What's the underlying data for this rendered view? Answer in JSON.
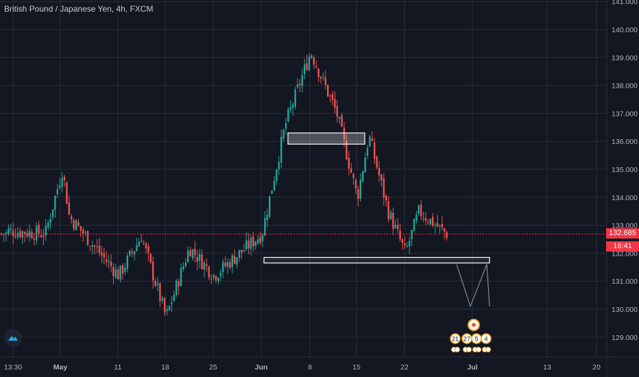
{
  "header": {
    "title": "British Pound / Japanese Yen, 4h, FXCM"
  },
  "price_axis": {
    "labels": [
      "141.000",
      "140.000",
      "139.000",
      "138.000",
      "137.000",
      "136.000",
      "135.000",
      "134.000",
      "133.000",
      "132.000",
      "131.000",
      "130.000",
      "129.000"
    ],
    "last_price": "132.685",
    "countdown": "16:41",
    "last_price_color": "#f23645",
    "countdown_color": "#f23645"
  },
  "time_axis": {
    "labels": [
      "13:30",
      "May",
      "11",
      "18",
      "25",
      "Jun",
      "8",
      "15",
      "22",
      "Jul",
      "13",
      "20"
    ]
  },
  "drawings": {
    "zone_color": "#ffffff"
  },
  "events": {
    "labels": [
      "21",
      "27",
      "5",
      "4"
    ]
  },
  "colors": {
    "background": "#131722",
    "grid": "#2a2e39",
    "bull": "#26a69a",
    "bear": "#ef5350",
    "price_line": "#f23645"
  },
  "chart_data": {
    "type": "candlestick",
    "title": "British Pound / Japanese Yen, 4h, FXCM",
    "ylim": [
      128.5,
      141.0
    ],
    "grid": true,
    "approx_close_path": [
      {
        "x": "Apr 28",
        "y": 132.8
      },
      {
        "x": "May 1",
        "y": 132.7
      },
      {
        "x": "May 4",
        "y": 135.0
      },
      {
        "x": "May 5",
        "y": 133.3
      },
      {
        "x": "May 11",
        "y": 131.2
      },
      {
        "x": "May 14",
        "y": 132.6
      },
      {
        "x": "May 18",
        "y": 129.7
      },
      {
        "x": "May 21",
        "y": 132.2
      },
      {
        "x": "May 25",
        "y": 131.2
      },
      {
        "x": "Jun 1",
        "y": 132.7
      },
      {
        "x": "Jun 4",
        "y": 136.6
      },
      {
        "x": "Jun 8",
        "y": 139.2
      },
      {
        "x": "Jun 12",
        "y": 137.0
      },
      {
        "x": "Jun 15",
        "y": 134.0
      },
      {
        "x": "Jun 16",
        "y": 136.2
      },
      {
        "x": "Jun 19",
        "y": 133.5
      },
      {
        "x": "Jun 22",
        "y": 132.0
      },
      {
        "x": "Jun 24",
        "y": 133.5
      },
      {
        "x": "Jun 26",
        "y": 132.7
      }
    ]
  }
}
